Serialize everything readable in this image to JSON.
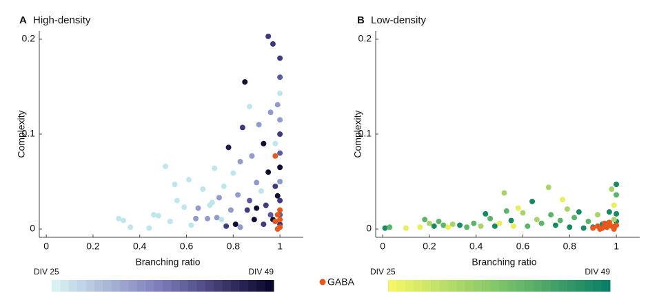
{
  "chart_data": [
    {
      "type": "scatter",
      "panel": "A",
      "title": "High-density",
      "xlabel": "Branching ratio",
      "ylabel": "Complexity",
      "xlim": [
        -0.03,
        1.1
      ],
      "ylim": [
        -0.0087,
        0.2087
      ],
      "xticks": [
        0,
        0.2,
        0.4,
        0.6,
        0.8,
        1
      ],
      "yticks": [
        0,
        0.1,
        0.2
      ],
      "colorbar": {
        "low_label": "DIV 25",
        "high_label": "DIV 49",
        "colors": [
          "#d6f2f3",
          "#7a78b8",
          "#0b0830"
        ]
      },
      "points": {
        "x": [
          0.31,
          0.33,
          0.36,
          0.44,
          0.46,
          0.48,
          0.51,
          0.53,
          0.55,
          0.56,
          0.59,
          0.61,
          0.62,
          0.64,
          0.65,
          0.67,
          0.69,
          0.7,
          0.72,
          0.73,
          0.74,
          0.76,
          0.77,
          0.78,
          0.79,
          0.8,
          0.81,
          0.82,
          0.83,
          0.84,
          0.85,
          0.86,
          0.87,
          0.88,
          0.89,
          0.9,
          0.91,
          0.92,
          0.93,
          0.94,
          0.95,
          0.95,
          0.96,
          0.97,
          0.97,
          0.98,
          0.98,
          0.99,
          0.99,
          1.0,
          1.0,
          1.0,
          1.0,
          1.0,
          1.0,
          1.0,
          1.0,
          1.0,
          1.0,
          1.0,
          0.96,
          0.93,
          0.9,
          0.87,
          0.83,
          0.75,
          0.71
        ],
        "y": [
          0.011,
          0.009,
          0.002,
          0.001,
          0.015,
          0.014,
          0.066,
          0.008,
          0.047,
          0.03,
          0.023,
          0.052,
          0.004,
          0.011,
          0.022,
          0.042,
          0.011,
          0.025,
          0.064,
          0.012,
          0.033,
          0.045,
          0.003,
          0.086,
          0.02,
          0.059,
          0.005,
          0.036,
          0.071,
          0.107,
          0.155,
          0.02,
          0.129,
          0.077,
          0.01,
          0.049,
          0.11,
          0.04,
          0.09,
          0.025,
          0.203,
          0.06,
          0.123,
          0.01,
          0.195,
          0.045,
          0.09,
          0.035,
          0.131,
          0.18,
          0.16,
          0.143,
          0.115,
          0.1,
          0.08,
          0.065,
          0.05,
          0.03,
          0.015,
          0.005,
          0.015,
          0.005,
          0.022,
          0.03,
          0.002,
          0.01,
          0.028
        ],
        "colors": [
          "#bfe6ea",
          "#bfe6ea",
          "#bfe6ea",
          "#bfe6ea",
          "#bfe6ea",
          "#bfe6ea",
          "#bfe6ea",
          "#bfe6ea",
          "#bfe6ea",
          "#bfe6ea",
          "#bfe6ea",
          "#bfe6ea",
          "#bfe6ea",
          "#8f9ccc",
          "#8f9ccc",
          "#bfe6ea",
          "#8f9ccc",
          "#bfe6ea",
          "#bfe6ea",
          "#8f9ccc",
          "#8f9ccc",
          "#bfe6ea",
          "#3e3a7e",
          "#1d1a4a",
          "#8f9ccc",
          "#bfe6ea",
          "#0f0c32",
          "#8f9ccc",
          "#8f9ccc",
          "#3e3a7e",
          "#0f0c32",
          "#3e3a7e",
          "#bfe6ea",
          "#8f9ccc",
          "#0f0c32",
          "#8f9ccc",
          "#8f9ccc",
          "#bfe6ea",
          "#0f0c32",
          "#3e3a7e",
          "#3e3a7e",
          "#0f0c32",
          "#8f9ccc",
          "#0f0c32",
          "#3e3a7e",
          "#3e3a7e",
          "#bfe6ea",
          "#0f0c32",
          "#8f9ccc",
          "#3e3a7e",
          "#5c5a9e",
          "#bfe6ea",
          "#8f9ccc",
          "#3e3a7e",
          "#5c5a9e",
          "#0f0c32",
          "#8f9ccc",
          "#3e3a7e",
          "#5c5a9e",
          "#3e3a7e",
          "#5c5a9e",
          "#3e3a7e",
          "#0f0c32",
          "#5c5a9e",
          "#8f9ccc",
          "#bfe6ea",
          "#bfe6ea"
        ]
      },
      "gaba": {
        "x": [
          0.98,
          1.0,
          1.0,
          1.0,
          0.99,
          0.98,
          0.99
        ],
        "y": [
          0.077,
          0.02,
          0.01,
          0.002,
          0.0,
          0.008,
          0.015
        ]
      }
    },
    {
      "type": "scatter",
      "panel": "B",
      "title": "Low-density",
      "xlabel": "Branching ratio",
      "ylabel": "Complexity",
      "xlim": [
        -0.03,
        1.1
      ],
      "ylim": [
        -0.0087,
        0.2087
      ],
      "xticks": [
        0,
        0.2,
        0.4,
        0.6,
        0.8,
        1
      ],
      "yticks": [
        0,
        0.1,
        0.2
      ],
      "colorbar": {
        "low_label": "DIV 25",
        "high_label": "DIV 49",
        "colors": [
          "#f4f668",
          "#7fc46a",
          "#0c7f66"
        ]
      },
      "points": {
        "x": [
          0.01,
          0.03,
          0.1,
          0.16,
          0.18,
          0.2,
          0.22,
          0.24,
          0.26,
          0.28,
          0.3,
          0.33,
          0.36,
          0.39,
          0.42,
          0.44,
          0.46,
          0.48,
          0.5,
          0.52,
          0.53,
          0.55,
          0.56,
          0.58,
          0.6,
          0.62,
          0.64,
          0.66,
          0.68,
          0.71,
          0.72,
          0.74,
          0.76,
          0.77,
          0.79,
          0.8,
          0.82,
          0.84,
          0.86,
          0.88,
          0.9,
          0.92,
          0.94,
          0.96,
          0.98,
          0.99,
          1.0,
          1.0,
          1.0,
          1.0,
          0.99,
          0.97
        ],
        "y": [
          0.001,
          0.002,
          0.001,
          0.002,
          0.01,
          0.006,
          0.003,
          0.008,
          0.004,
          0.002,
          0.005,
          0.004,
          0.002,
          0.006,
          0.003,
          0.016,
          0.011,
          0.003,
          0.006,
          0.038,
          0.019,
          0.009,
          0.003,
          0.022,
          0.017,
          0.003,
          0.029,
          0.01,
          0.006,
          0.044,
          0.015,
          0.004,
          0.009,
          0.031,
          0.021,
          0.002,
          0.012,
          0.018,
          0.001,
          0.008,
          0.002,
          0.015,
          0.005,
          0.002,
          0.042,
          0.025,
          0.047,
          0.036,
          0.016,
          0.008,
          0.01,
          0.018
        ],
        "colors": [
          "#178a62",
          "#5cb46b",
          "#e8ef5a",
          "#e8ef5a",
          "#5cb46b",
          "#a9d46a",
          "#178a62",
          "#5cb46b",
          "#5cb46b",
          "#e8ef5a",
          "#a9d46a",
          "#178a62",
          "#5cb46b",
          "#5cb46b",
          "#a9d46a",
          "#178a62",
          "#5cb46b",
          "#178a62",
          "#e8ef5a",
          "#a9d46a",
          "#5cb46b",
          "#178a62",
          "#e8ef5a",
          "#e8ef5a",
          "#a9d46a",
          "#5cb46b",
          "#178a62",
          "#a9d46a",
          "#5cb46b",
          "#a9d46a",
          "#5cb46b",
          "#178a62",
          "#5cb46b",
          "#e8ef5a",
          "#a9d46a",
          "#178a62",
          "#5cb46b",
          "#178a62",
          "#178a62",
          "#5cb46b",
          "#178a62",
          "#a9d46a",
          "#178a62",
          "#178a62",
          "#a9d46a",
          "#e8ef5a",
          "#178a62",
          "#5cb46b",
          "#178a62",
          "#178a62",
          "#a9d46a",
          "#178a62"
        ]
      },
      "gaba": {
        "x": [
          0.9,
          0.92,
          0.94,
          0.95,
          0.96,
          0.97,
          0.98,
          0.99,
          1.0,
          0.93
        ],
        "y": [
          0.001,
          0.003,
          0.001,
          0.006,
          0.002,
          0.007,
          0.003,
          0.0,
          0.004,
          0.0
        ]
      }
    }
  ],
  "legend": {
    "label": "GABA",
    "color": "#e8581c"
  }
}
